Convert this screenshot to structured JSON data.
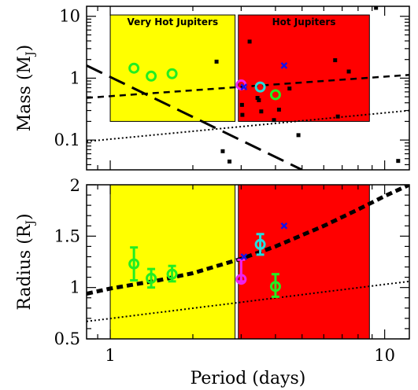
{
  "chart_data": {
    "type": "scatter",
    "x_scale": "log",
    "x_range": [
      0.82,
      12.3
    ],
    "x_ticks": [
      "1",
      "10"
    ],
    "xlabel_parts": [
      "Period (days)"
    ],
    "regions": [
      {
        "label": "Very Hot Jupiters",
        "x_range": [
          1.0,
          2.85
        ],
        "color": "#ffff00"
      },
      {
        "label": "Hot Jupiters",
        "x_range": [
          2.93,
          8.8
        ],
        "color": "#ff0000"
      }
    ],
    "panels": [
      {
        "name": "mass",
        "ylabel_main": "Mass (M",
        "ylabel_sub": "J",
        "ylabel_end": ")",
        "y_scale": "log",
        "y_range": [
          0.033,
          14.5
        ],
        "y_ticks": [
          "0.1",
          "1",
          "10"
        ],
        "region_y_range": [
          0.2,
          10.5
        ],
        "marker_colors": {
          "green": "#22ee22",
          "cyan": "#22dddd",
          "magenta": "#ee22ee",
          "blue": "#1111ee"
        },
        "rings": [
          {
            "x": 1.22,
            "y": 1.45,
            "color": "green"
          },
          {
            "x": 1.41,
            "y": 1.08,
            "color": "green"
          },
          {
            "x": 1.68,
            "y": 1.18,
            "color": "green"
          },
          {
            "x": 3.0,
            "y": 0.78,
            "color": "magenta"
          },
          {
            "x": 3.52,
            "y": 0.72,
            "color": "cyan"
          },
          {
            "x": 4.0,
            "y": 0.54,
            "color": "green"
          }
        ],
        "crosses": [
          {
            "x": 3.07,
            "y": 0.72
          },
          {
            "x": 4.3,
            "y": 1.6
          }
        ],
        "squares": [
          {
            "x": 2.44,
            "y": 1.85
          },
          {
            "x": 2.57,
            "y": 0.066
          },
          {
            "x": 2.72,
            "y": 0.045
          },
          {
            "x": 3.22,
            "y": 3.9
          },
          {
            "x": 3.44,
            "y": 0.48
          },
          {
            "x": 3.48,
            "y": 0.44
          },
          {
            "x": 3.55,
            "y": 0.29
          },
          {
            "x": 3.95,
            "y": 0.21
          },
          {
            "x": 4.12,
            "y": 0.31
          },
          {
            "x": 4.5,
            "y": 0.68
          },
          {
            "x": 4.85,
            "y": 0.12
          },
          {
            "x": 6.6,
            "y": 1.95
          },
          {
            "x": 6.75,
            "y": 0.24
          },
          {
            "x": 7.4,
            "y": 1.28
          },
          {
            "x": 9.3,
            "y": 13.7
          },
          {
            "x": 11.2,
            "y": 0.046
          },
          {
            "x": 3.02,
            "y": 0.37
          },
          {
            "x": 3.03,
            "y": 0.255
          }
        ],
        "lines": [
          {
            "style": "long-dash",
            "x": [
              0.82,
              5.0
            ],
            "y": [
              1.6,
              0.033
            ]
          },
          {
            "style": "short-dash",
            "x": [
              0.82,
              12.3
            ],
            "y": [
              0.48,
              1.13
            ]
          },
          {
            "style": "dotted",
            "x": [
              0.82,
              12.3
            ],
            "y": [
              0.095,
              0.3
            ]
          }
        ]
      },
      {
        "name": "radius",
        "ylabel_main": "Radius (R",
        "ylabel_sub": "J",
        "ylabel_end": ")",
        "y_scale": "linear",
        "y_range": [
          0.5,
          2.0
        ],
        "y_ticks": [
          "0.5",
          "1",
          "1.5",
          "2"
        ],
        "region_y_range": [
          0.5,
          2.0
        ],
        "marker_colors": {
          "green": "#22ee22",
          "cyan": "#22dddd",
          "magenta": "#ee22ee",
          "blue": "#1111ee"
        },
        "rings": [
          {
            "x": 1.22,
            "y": 1.23,
            "err": [
              1.07,
              1.39
            ],
            "color": "green"
          },
          {
            "x": 1.41,
            "y": 1.09,
            "err": [
              1.0,
              1.18
            ],
            "color": "green"
          },
          {
            "x": 1.68,
            "y": 1.13,
            "err": [
              1.06,
              1.21
            ],
            "color": "green"
          },
          {
            "x": 3.0,
            "y": 1.08,
            "err": [
              1.06,
              1.27
            ],
            "color": "magenta"
          },
          {
            "x": 3.52,
            "y": 1.42,
            "err": [
              1.32,
              1.52
            ],
            "color": "cyan"
          },
          {
            "x": 4.0,
            "y": 1.01,
            "err": [
              0.91,
              1.13
            ],
            "color": "green"
          }
        ],
        "crosses": [
          {
            "x": 3.07,
            "y": 1.3
          },
          {
            "x": 4.3,
            "y": 1.6
          }
        ],
        "squares": [],
        "lines": [
          {
            "style": "heavy-dash",
            "curve": true,
            "x": [
              0.82,
              1.0,
              1.5,
              2.0,
              3.0,
              4.0,
              6.0,
              8.0,
              10.0,
              12.3
            ],
            "y": [
              0.94,
              0.99,
              1.07,
              1.14,
              1.28,
              1.4,
              1.6,
              1.76,
              1.89,
              2.0
            ]
          },
          {
            "style": "dotted",
            "x": [
              0.82,
              12.3
            ],
            "y": [
              0.67,
              1.06
            ]
          }
        ]
      }
    ]
  }
}
